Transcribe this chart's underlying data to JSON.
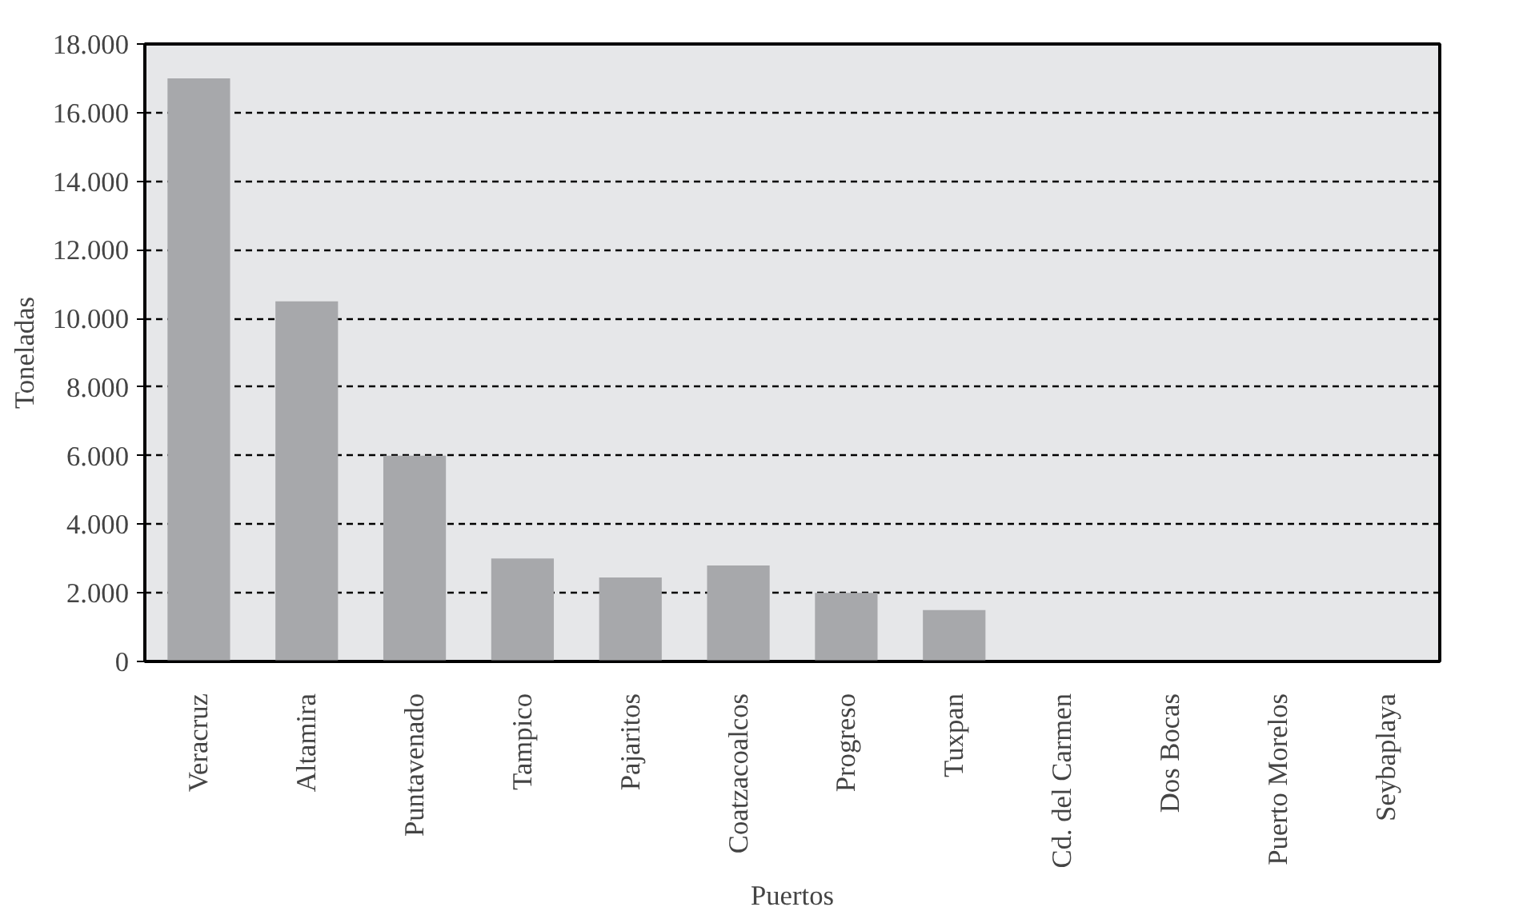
{
  "chart_data": {
    "type": "bar",
    "xlabel": "Puertos",
    "ylabel": "Toneladas",
    "categories": [
      "Veracruz",
      "Altamira",
      "Puntavenado",
      "Tampico",
      "Pajaritos",
      "Coatzacoalcos",
      "Progreso",
      "Tuxpan",
      "Cd. del Carmen",
      "Dos Bocas",
      "Puerto Morelos",
      "Seybaplaya"
    ],
    "values": [
      17000,
      10500,
      6000,
      3000,
      2450,
      2800,
      2000,
      1500,
      0,
      0,
      0,
      0
    ],
    "color": "#a7a8ab",
    "ylim": [
      0,
      18000
    ],
    "yticks": [
      0,
      {
        "value": 2000,
        "label": "2.000"
      },
      {
        "value": 4000,
        "label": "4.000"
      },
      {
        "value": 6000,
        "label": "6.000"
      },
      {
        "value": 8000,
        "label": "8.000"
      },
      {
        "value": 10000,
        "label": "10.000"
      },
      {
        "value": 12000,
        "label": "12.000"
      },
      {
        "value": 14000,
        "label": "14.000"
      },
      {
        "value": 16000,
        "label": "16.000"
      },
      {
        "value": 18000,
        "label": "18.000"
      }
    ],
    "grid": "y",
    "line_style": "dashed"
  }
}
